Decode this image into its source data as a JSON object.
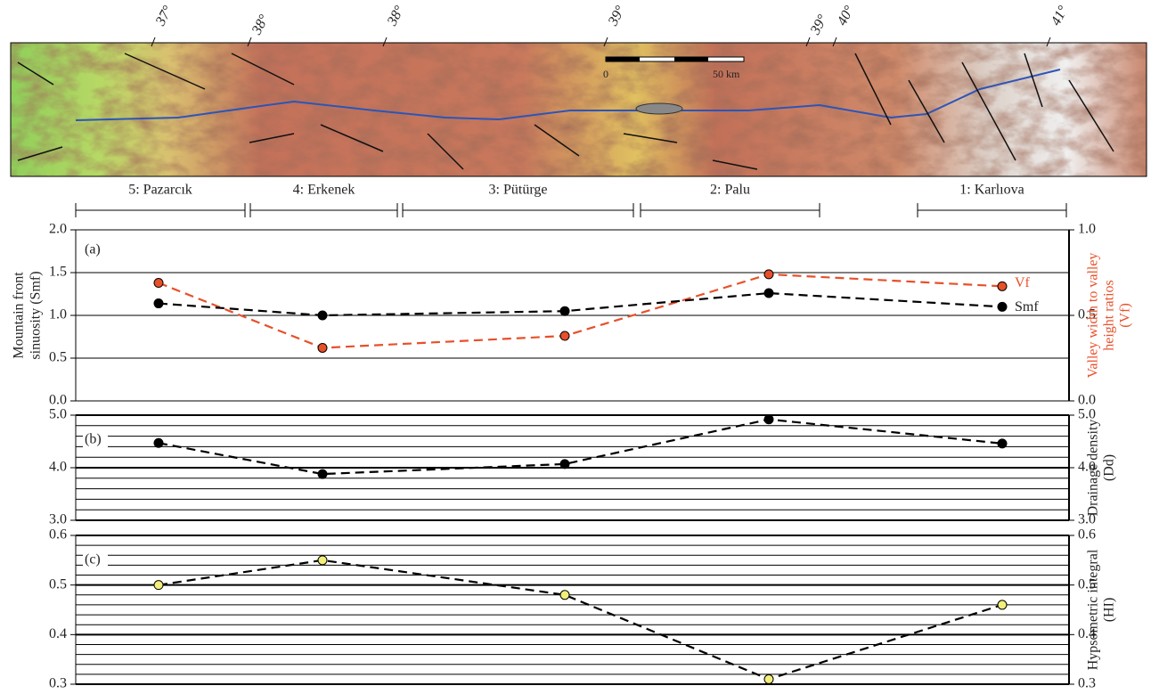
{
  "map": {
    "longitudes": [
      "37°",
      "38°",
      "38°",
      "39°",
      "39°",
      "40°",
      "41°"
    ],
    "scale_bar": {
      "start": "0",
      "end": "50 km"
    }
  },
  "segments": [
    "5: Pazarcık",
    "4: Erkenek",
    "3: Pütürge",
    "2: Palu",
    "1: Karlıova"
  ],
  "chart_data": [
    {
      "type": "line",
      "panel": "(a)",
      "ylabel": [
        "Mountain front",
        "sinuosity (Smf)"
      ],
      "y2label": [
        "Valley width to valley",
        "height ratios",
        "(Vf)"
      ],
      "y2label_color": "#e8502a",
      "ylim": [
        0,
        2
      ],
      "yticks": [
        {
          "value": 0,
          "label": "0.0"
        },
        0.5,
        {
          "value": 1,
          "label": "1.0"
        },
        1.5,
        {
          "value": 2,
          "label": "2.0"
        }
      ],
      "y2lim": [
        0,
        1
      ],
      "y2ticks": [
        {
          "value": 0,
          "label": "0.0"
        },
        0.5,
        {
          "value": 1,
          "label": "1.0"
        }
      ],
      "grid": true,
      "series": [
        {
          "name": "Vf",
          "color": "#e8502a",
          "axis": "y2",
          "values": [
            0.69,
            0.31,
            0.38,
            0.74,
            0.67
          ]
        },
        {
          "name": "Smf",
          "color": "#000000",
          "values": [
            1.14,
            1.0,
            1.05,
            1.26,
            1.1
          ]
        }
      ]
    },
    {
      "type": "line",
      "panel": "(b)",
      "y2label": [
        "Drainage density",
        "(Dd)"
      ],
      "ylim": [
        3,
        5
      ],
      "yticks": [
        {
          "value": 3,
          "label": "3.0"
        },
        {
          "value": 4,
          "label": "4.0"
        },
        {
          "value": 5,
          "label": "5.0"
        }
      ],
      "y2lim": [
        3,
        5
      ],
      "y2ticks": [
        {
          "value": 3,
          "label": "3.0"
        },
        {
          "value": 4,
          "label": "4.0"
        },
        {
          "value": 5,
          "label": "5.0"
        }
      ],
      "grid": true,
      "minor_step": 0.2,
      "series": [
        {
          "color": "#000000",
          "values": [
            4.47,
            3.88,
            4.07,
            4.92,
            4.46
          ]
        }
      ]
    },
    {
      "type": "line",
      "panel": "(c)",
      "y2label": [
        "Hypsometric integral",
        "(HI)"
      ],
      "ylim": [
        0.3,
        0.6
      ],
      "yticks": [
        0.3,
        0.4,
        0.5,
        0.6
      ],
      "y2lim": [
        0.3,
        0.6
      ],
      "y2ticks": [
        0.3,
        0.4,
        0.5,
        0.6
      ],
      "grid": true,
      "minor_step": 0.02,
      "series": [
        {
          "color": "#000000",
          "marker_color": "#f2ef7a",
          "values": [
            0.5,
            0.55,
            0.48,
            0.31,
            0.46
          ]
        }
      ]
    }
  ]
}
